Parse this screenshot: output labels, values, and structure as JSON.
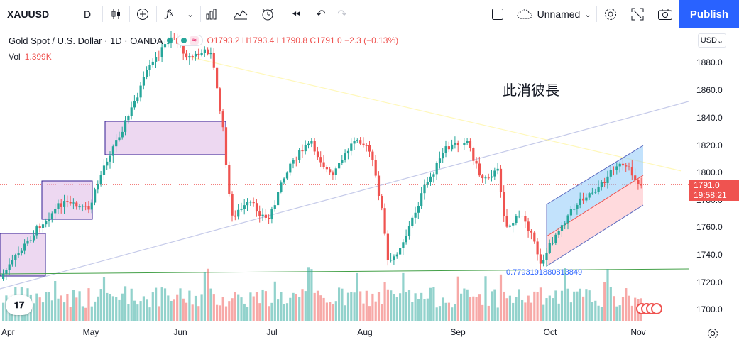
{
  "toolbar": {
    "symbol": "XAUUSD",
    "interval": "D",
    "layout_name": "Unnamed",
    "publish_label": "Publish",
    "icons": [
      "candles-icon",
      "add-indicator-icon",
      "fx-icon",
      "chevron-down-icon",
      "bar-style-icon",
      "templates-icon",
      "alert-icon",
      "replay-icon",
      "undo-icon",
      "redo-icon",
      "layout-icon",
      "cloud-icon",
      "settings-icon",
      "fullscreen-icon",
      "camera-icon"
    ]
  },
  "legend": {
    "title": "Gold Spot / U.S. Dollar · 1D · OANDA",
    "open": "O1793.2",
    "high": "H1793.4",
    "low": "L1790.8",
    "close": "C1791.0",
    "change": "−2.3 (−0.13%)",
    "volume_label": "Vol",
    "volume_value": "1.399K"
  },
  "annotation": "此消彼長",
  "fib_label": "0.7793191880813849",
  "price_axis": {
    "currency": "USD",
    "ticks": [
      "1880.0",
      "1860.0",
      "1840.0",
      "1820.0",
      "1800.0",
      "1780.0",
      "1760.0",
      "1740.0",
      "1720.0",
      "1700.0"
    ],
    "current_price": "1791.0",
    "countdown": "19:58:21"
  },
  "time_axis": {
    "months": [
      "Apr",
      "May",
      "Jun",
      "Jul",
      "Aug",
      "Sep",
      "Oct",
      "Nov"
    ]
  },
  "colors": {
    "up": "#26a69a",
    "down": "#ef5350",
    "accent": "#2962ff",
    "rect_fill": "#e1bee7"
  }
}
